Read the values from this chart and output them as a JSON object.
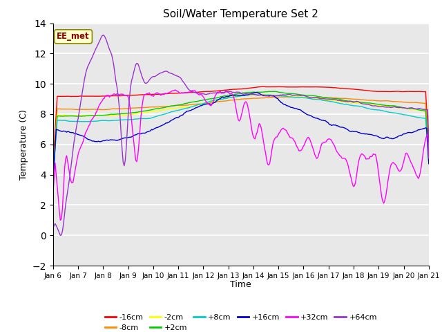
{
  "title": "Soil/Water Temperature Set 2",
  "xlabel": "Time",
  "ylabel": "Temperature (C)",
  "ylim": [
    -2,
    14
  ],
  "xlim": [
    0,
    15
  ],
  "x_tick_labels": [
    "Jan 6",
    "Jan 7",
    "Jan 8",
    "Jan 9",
    "Jan 10",
    "Jan 11",
    "Jan 12",
    "Jan 13",
    "Jan 14",
    "Jan 15",
    "Jan 16",
    "Jan 17",
    "Jan 18",
    "Jan 19",
    "Jan 20",
    "Jan 21"
  ],
  "yticks": [
    -2,
    0,
    2,
    4,
    6,
    8,
    10,
    12,
    14
  ],
  "series_colors": [
    "#ff0000",
    "#ff8800",
    "#ffff00",
    "#00cc00",
    "#00cccc",
    "#0000cc",
    "#ff00ff",
    "#9933cc"
  ],
  "series_labels": [
    "-16cm",
    "-8cm",
    "-2cm",
    "+2cm",
    "+8cm",
    "+16cm",
    "+32cm",
    "+64cm"
  ],
  "background_color": "#e8e8e8",
  "annotation_text": "EE_met",
  "annotation_color": "#880000",
  "annotation_bg": "#ffffcc",
  "annotation_border": "#888800"
}
